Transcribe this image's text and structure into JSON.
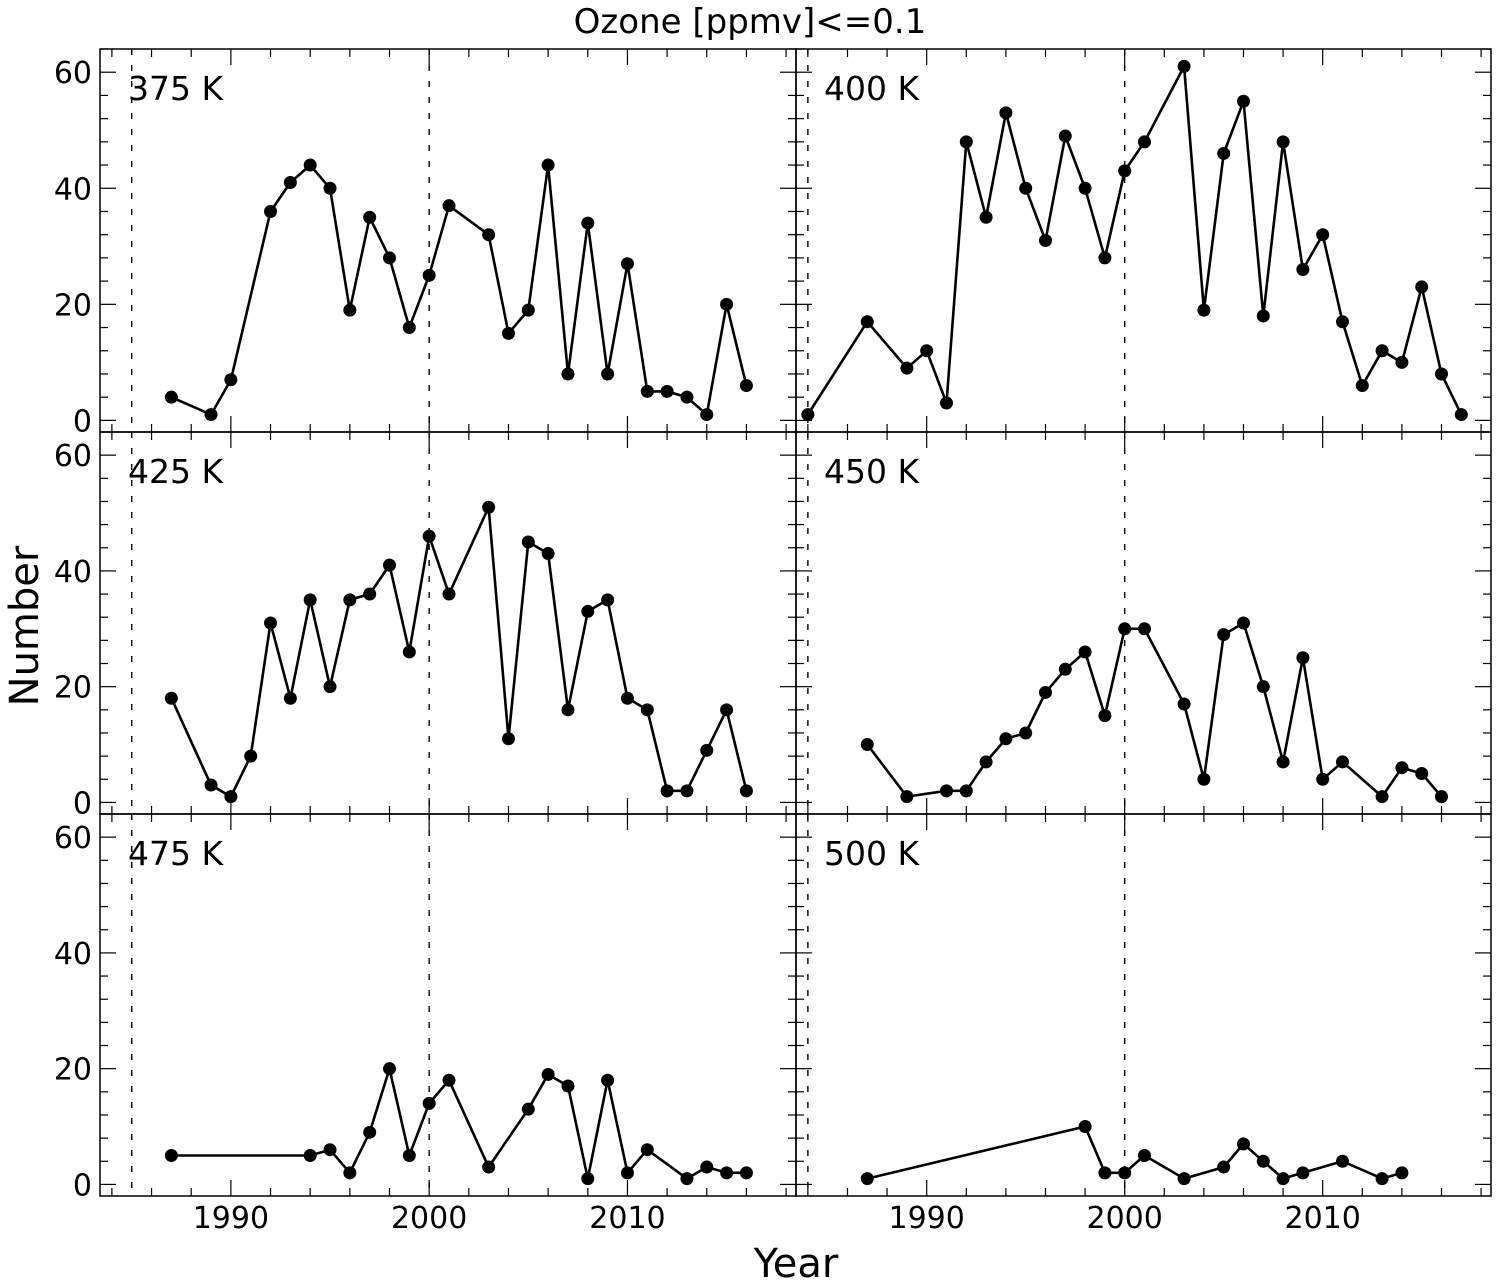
{
  "figure": {
    "title": "Ozone [ppmv]<=0.1",
    "xlabel": "Year",
    "ylabel": "Number"
  },
  "chart_data": [
    {
      "type": "line",
      "panel_label": "375 K",
      "x": [
        1987,
        1989,
        1990,
        1992,
        1993,
        1994,
        1995,
        1996,
        1997,
        1998,
        1999,
        2000,
        2001,
        2003,
        2004,
        2005,
        2006,
        2007,
        2008,
        2009,
        2010,
        2011,
        2012,
        2013,
        2014,
        2015,
        2016
      ],
      "y": [
        4,
        1,
        7,
        36,
        41,
        44,
        40,
        19,
        35,
        28,
        16,
        25,
        37,
        32,
        15,
        19,
        44,
        8,
        34,
        8,
        27,
        5,
        5,
        4,
        1,
        20,
        6
      ],
      "vlines": [
        1985,
        2000
      ],
      "xlim": [
        1983.4,
        2018.5
      ],
      "ylim": [
        -2,
        64
      ],
      "xticks": [
        1990,
        2000,
        2010
      ],
      "yticks": [
        0,
        20,
        40,
        60
      ],
      "color": "#000000"
    },
    {
      "type": "line",
      "panel_label": "400 K",
      "x": [
        1984,
        1987,
        1989,
        1990,
        1991,
        1992,
        1993,
        1994,
        1995,
        1996,
        1997,
        1998,
        1999,
        2000,
        2001,
        2003,
        2004,
        2005,
        2006,
        2007,
        2008,
        2009,
        2010,
        2011,
        2012,
        2013,
        2014,
        2015,
        2016,
        2017
      ],
      "y": [
        1,
        17,
        9,
        12,
        3,
        48,
        35,
        53,
        40,
        31,
        49,
        40,
        28,
        43,
        48,
        61,
        19,
        46,
        55,
        18,
        48,
        26,
        32,
        17,
        6,
        12,
        10,
        23,
        8,
        1
      ],
      "vlines": [
        1984,
        2000
      ],
      "xlim": [
        1983.4,
        2018.5
      ],
      "ylim": [
        -2,
        64
      ],
      "xticks": [
        1990,
        2000,
        2010
      ],
      "yticks": [
        0,
        20,
        40,
        60
      ],
      "color": "#000000"
    },
    {
      "type": "line",
      "panel_label": "425 K",
      "x": [
        1987,
        1989,
        1990,
        1991,
        1992,
        1993,
        1994,
        1995,
        1996,
        1997,
        1998,
        1999,
        2000,
        2001,
        2003,
        2004,
        2005,
        2006,
        2007,
        2008,
        2009,
        2010,
        2011,
        2012,
        2013,
        2014,
        2015,
        2016
      ],
      "y": [
        18,
        3,
        1,
        8,
        31,
        18,
        35,
        20,
        35,
        36,
        41,
        26,
        46,
        36,
        51,
        11,
        45,
        43,
        16,
        33,
        35,
        18,
        16,
        2,
        2,
        9,
        16,
        2
      ],
      "vlines": [
        1985,
        2000
      ],
      "xlim": [
        1983.4,
        2018.5
      ],
      "ylim": [
        -2,
        64
      ],
      "xticks": [
        1990,
        2000,
        2010
      ],
      "yticks": [
        0,
        20,
        40,
        60
      ],
      "color": "#000000"
    },
    {
      "type": "line",
      "panel_label": "450 K",
      "x": [
        1987,
        1989,
        1991,
        1992,
        1993,
        1994,
        1995,
        1996,
        1997,
        1998,
        1999,
        2000,
        2001,
        2003,
        2004,
        2005,
        2006,
        2007,
        2008,
        2009,
        2010,
        2011,
        2013,
        2014,
        2015,
        2016
      ],
      "y": [
        10,
        1,
        2,
        2,
        7,
        11,
        12,
        19,
        23,
        26,
        15,
        30,
        30,
        17,
        4,
        29,
        31,
        20,
        7,
        25,
        4,
        7,
        1,
        6,
        5,
        1
      ],
      "vlines": [
        1984,
        2000
      ],
      "xlim": [
        1983.4,
        2018.5
      ],
      "ylim": [
        -2,
        64
      ],
      "xticks": [
        1990,
        2000,
        2010
      ],
      "yticks": [
        0,
        20,
        40,
        60
      ],
      "color": "#000000"
    },
    {
      "type": "line",
      "panel_label": "475 K",
      "x": [
        1987,
        1994,
        1995,
        1996,
        1997,
        1998,
        1999,
        2000,
        2001,
        2003,
        2005,
        2006,
        2007,
        2008,
        2009,
        2010,
        2011,
        2013,
        2014,
        2015,
        2016
      ],
      "y": [
        5,
        5,
        6,
        2,
        9,
        20,
        5,
        14,
        18,
        3,
        13,
        19,
        17,
        1,
        18,
        2,
        6,
        1,
        3,
        2,
        2
      ],
      "vlines": [
        1985,
        2000
      ],
      "xlim": [
        1983.4,
        2018.5
      ],
      "ylim": [
        -2,
        64
      ],
      "xticks": [
        1990,
        2000,
        2010
      ],
      "yticks": [
        0,
        20,
        40,
        60
      ],
      "color": "#000000"
    },
    {
      "type": "line",
      "panel_label": "500 K",
      "x": [
        1987,
        1998,
        1999,
        2000,
        2001,
        2003,
        2005,
        2006,
        2007,
        2008,
        2009,
        2011,
        2013,
        2014
      ],
      "y": [
        1,
        10,
        2,
        2,
        5,
        1,
        3,
        7,
        4,
        1,
        2,
        4,
        1,
        2
      ],
      "vlines": [
        1984,
        2000
      ],
      "xlim": [
        1983.4,
        2018.5
      ],
      "ylim": [
        -2,
        64
      ],
      "xticks": [
        1990,
        2000,
        2010
      ],
      "yticks": [
        0,
        20,
        40,
        60
      ],
      "color": "#000000"
    }
  ]
}
